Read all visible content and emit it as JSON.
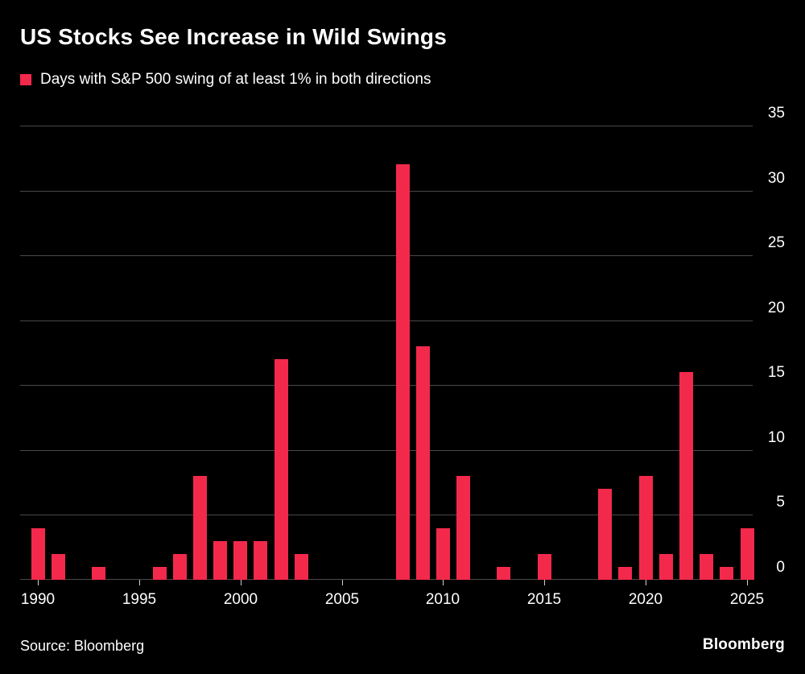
{
  "title": "US Stocks See Increase in Wild Swings",
  "legend": {
    "label": "Days with S&P 500 swing of at least 1% in both directions"
  },
  "source": "Source: Bloomberg",
  "brand": "Bloomberg",
  "colors": {
    "background": "#000000",
    "bar": "#f3294c",
    "grid": "#4a4a4a",
    "text": "#ffffff",
    "tick": "#cfcfcf"
  },
  "chart_data": {
    "type": "bar",
    "title": "US Stocks See Increase in Wild Swings",
    "legend": [
      "Days with S&P 500 swing of at least 1% in both directions"
    ],
    "legend_position": "top-left",
    "grid": true,
    "ylim": [
      0,
      35
    ],
    "yticks": [
      0,
      5,
      10,
      15,
      20,
      25,
      30,
      35
    ],
    "xticks": [
      1990,
      1995,
      2000,
      2005,
      2010,
      2015,
      2020,
      2025
    ],
    "x": [
      1990,
      1991,
      1992,
      1993,
      1994,
      1995,
      1996,
      1997,
      1998,
      1999,
      2000,
      2001,
      2002,
      2003,
      2004,
      2005,
      2006,
      2007,
      2008,
      2009,
      2010,
      2011,
      2012,
      2013,
      2014,
      2015,
      2016,
      2017,
      2018,
      2019,
      2020,
      2021,
      2022,
      2023,
      2024,
      2025
    ],
    "values": [
      4,
      2,
      0,
      1,
      0,
      0,
      1,
      2,
      8,
      3,
      3,
      3,
      17,
      2,
      0,
      0,
      0,
      0,
      32,
      18,
      4,
      8,
      0,
      1,
      0,
      2,
      0,
      0,
      7,
      1,
      8,
      2,
      16,
      2,
      1,
      4
    ]
  }
}
